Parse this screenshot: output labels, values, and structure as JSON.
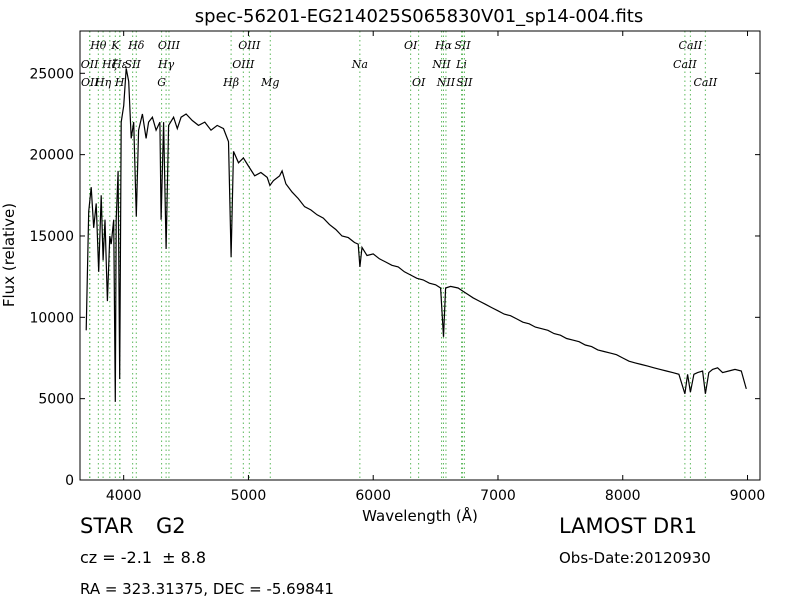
{
  "chart_data": {
    "type": "line",
    "title": "spec-56201-EG214025S065830V01_sp14-004.fits",
    "xlabel": "Wavelength (Å)",
    "ylabel": "Flux (relative)",
    "xlim": [
      3650,
      9100
    ],
    "ylim": [
      0,
      27600
    ],
    "xticks": [
      4000,
      5000,
      6000,
      7000,
      8000,
      9000
    ],
    "yticks": [
      0,
      5000,
      10000,
      15000,
      20000,
      25000
    ],
    "grid": false,
    "series": [
      {
        "color": "#000000",
        "x": [
          3700,
          3720,
          3740,
          3760,
          3780,
          3800,
          3820,
          3835,
          3850,
          3870,
          3889,
          3900,
          3920,
          3933,
          3940,
          3955,
          3968,
          3980,
          4000,
          4020,
          4040,
          4060,
          4080,
          4101,
          4120,
          4150,
          4180,
          4200,
          4230,
          4260,
          4290,
          4300,
          4320,
          4340,
          4360,
          4400,
          4430,
          4460,
          4500,
          4550,
          4600,
          4650,
          4700,
          4750,
          4800,
          4840,
          4861,
          4880,
          4920,
          4960,
          5000,
          5050,
          5100,
          5150,
          5172,
          5200,
          5250,
          5270,
          5300,
          5350,
          5400,
          5450,
          5500,
          5550,
          5600,
          5650,
          5700,
          5750,
          5800,
          5850,
          5880,
          5893,
          5910,
          5950,
          6000,
          6050,
          6100,
          6150,
          6200,
          6250,
          6300,
          6350,
          6400,
          6450,
          6500,
          6540,
          6563,
          6580,
          6620,
          6680,
          6720,
          6760,
          6800,
          6850,
          6900,
          6950,
          7000,
          7050,
          7100,
          7150,
          7200,
          7250,
          7300,
          7350,
          7400,
          7450,
          7500,
          7550,
          7600,
          7650,
          7700,
          7750,
          7800,
          7850,
          7900,
          7950,
          8000,
          8050,
          8100,
          8150,
          8200,
          8250,
          8300,
          8350,
          8400,
          8450,
          8498,
          8520,
          8542,
          8570,
          8600,
          8640,
          8662,
          8690,
          8720,
          8760,
          8800,
          8850,
          8900,
          8950,
          8990
        ],
        "y": [
          9200,
          16500,
          18000,
          15500,
          17000,
          12800,
          17500,
          13500,
          16000,
          11000,
          15000,
          14500,
          16000,
          4800,
          16000,
          19000,
          6200,
          22000,
          23000,
          25300,
          24500,
          21000,
          22000,
          16200,
          21500,
          22500,
          21000,
          22000,
          22300,
          21500,
          22000,
          16000,
          22000,
          14200,
          21800,
          22300,
          21600,
          22300,
          22500,
          22100,
          21800,
          22000,
          21500,
          21800,
          21600,
          20800,
          13700,
          20200,
          19500,
          19800,
          19300,
          18700,
          18900,
          18600,
          18100,
          18400,
          18700,
          19000,
          18200,
          17700,
          17300,
          16800,
          16600,
          16300,
          16100,
          15700,
          15400,
          15000,
          14900,
          14600,
          14500,
          13100,
          14300,
          13800,
          13900,
          13600,
          13400,
          13200,
          13100,
          12800,
          12600,
          12400,
          12300,
          12100,
          12000,
          11800,
          8800,
          11800,
          11900,
          11800,
          11600,
          11400,
          11200,
          11000,
          10800,
          10600,
          10400,
          10200,
          10100,
          9900,
          9700,
          9600,
          9400,
          9300,
          9200,
          9000,
          8900,
          8700,
          8600,
          8500,
          8300,
          8200,
          8000,
          7900,
          7800,
          7700,
          7500,
          7300,
          7200,
          7100,
          7000,
          6900,
          6800,
          6700,
          6600,
          6500,
          5300,
          6500,
          5400,
          6500,
          6600,
          6700,
          5300,
          6600,
          6800,
          6900,
          6600,
          6700,
          6800,
          6700,
          5600
        ]
      }
    ],
    "lines": [
      {
        "label": "Hθ",
        "row": 0,
        "x": 3797
      },
      {
        "label": "K",
        "row": 0,
        "x": 3933
      },
      {
        "label": "Hδ",
        "row": 0,
        "x": 4101
      },
      {
        "label": "OIII",
        "row": 0,
        "x": 4363
      },
      {
        "label": "OIII",
        "row": 0,
        "x": 5007
      },
      {
        "label": "OI",
        "row": 0,
        "x": 6300
      },
      {
        "label": "Hα",
        "row": 0,
        "x": 6563
      },
      {
        "label": "SII",
        "row": 0,
        "x": 6716
      },
      {
        "label": "CaII",
        "row": 0,
        "x": 8542
      },
      {
        "label": "OII",
        "row": 1,
        "x": 3727
      },
      {
        "label": "Hζ",
        "row": 1,
        "x": 3889
      },
      {
        "label": "Hε",
        "row": 1,
        "x": 3970
      },
      {
        "label": "SII",
        "row": 1,
        "x": 4072
      },
      {
        "label": "Hγ",
        "row": 1,
        "x": 4340
      },
      {
        "label": "OIII",
        "row": 1,
        "x": 4959
      },
      {
        "label": "Na",
        "row": 1,
        "x": 5893
      },
      {
        "label": "NII",
        "row": 1,
        "x": 6548
      },
      {
        "label": "Li",
        "row": 1,
        "x": 6708
      },
      {
        "label": "CaII",
        "row": 1,
        "x": 8498
      },
      {
        "label": "OII",
        "row": 2,
        "x": 3729
      },
      {
        "label": "Hη",
        "row": 2,
        "x": 3835
      },
      {
        "label": "H",
        "row": 2,
        "x": 3968
      },
      {
        "label": "G",
        "row": 2,
        "x": 4304
      },
      {
        "label": "Hβ",
        "row": 2,
        "x": 4861
      },
      {
        "label": "Mg",
        "row": 2,
        "x": 5175
      },
      {
        "label": "OI",
        "row": 2,
        "x": 6364
      },
      {
        "label": "NII",
        "row": 2,
        "x": 6583
      },
      {
        "label": "SII",
        "row": 2,
        "x": 6731
      },
      {
        "label": "CaII",
        "row": 2,
        "x": 8662
      }
    ]
  },
  "info": {
    "class_label": "STAR",
    "subclass": "G2",
    "cz": "cz = -2.1  ± 8.8",
    "survey": "LAMOST DR1",
    "obs_date": "Obs-Date:20120930",
    "coords": "RA = 323.31375, DEC = -5.69841"
  }
}
